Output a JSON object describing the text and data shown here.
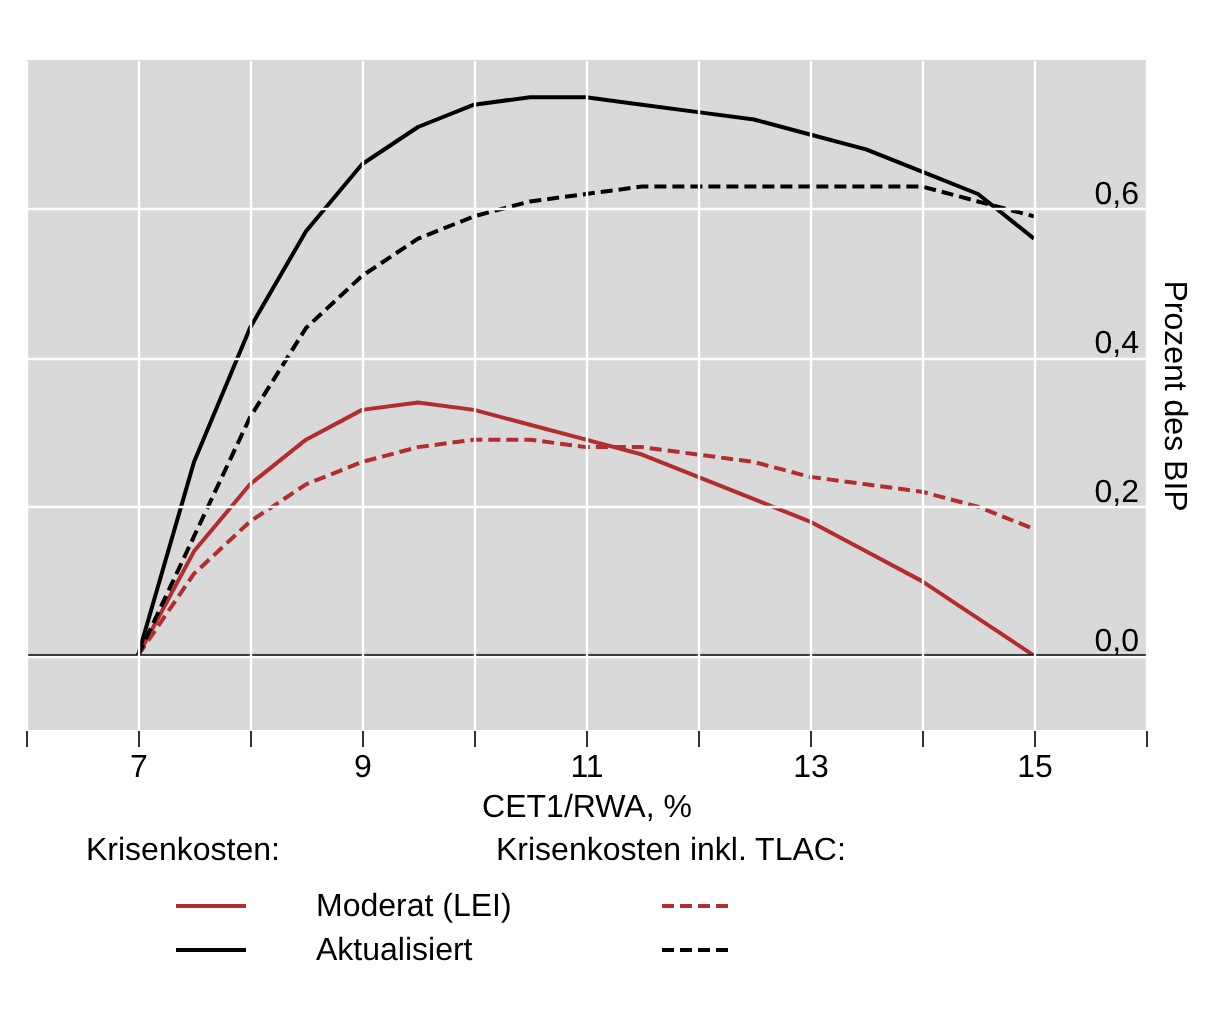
{
  "chart_data": {
    "type": "line",
    "xlabel": "CET1/RWA, %",
    "ylabel": "Prozent des BIP",
    "legend_title": "Krisenkosten:",
    "annotations": [
      "Krisenkosten inkl. TLAC:"
    ],
    "x": [
      7,
      7.5,
      8,
      8.5,
      9,
      9.5,
      10,
      10.5,
      11,
      11.5,
      12,
      12.5,
      13,
      13.5,
      14,
      14.5,
      15
    ],
    "series": [
      {
        "name": "Moderat (LEI)",
        "color": "#b22d2d",
        "line_style": "solid",
        "values": [
          0,
          0.14,
          0.23,
          0.29,
          0.33,
          0.34,
          0.33,
          0.31,
          0.29,
          0.27,
          0.24,
          0.21,
          0.18,
          0.14,
          0.1,
          0.05,
          0
        ]
      },
      {
        "name": "Aktualisiert",
        "color": "#000000",
        "line_style": "solid",
        "values": [
          0,
          0.26,
          0.44,
          0.57,
          0.66,
          0.71,
          0.74,
          0.75,
          0.75,
          0.74,
          0.73,
          0.72,
          0.7,
          0.68,
          0.65,
          0.62,
          0.56
        ]
      },
      {
        "color": "#b22d2d",
        "line_style": "dashed",
        "values": [
          0,
          0.11,
          0.18,
          0.23,
          0.26,
          0.28,
          0.29,
          0.29,
          0.28,
          0.28,
          0.27,
          0.26,
          0.24,
          0.23,
          0.22,
          0.2,
          0.17
        ]
      },
      {
        "color": "#000000",
        "line_style": "dashed",
        "values": [
          0,
          0.16,
          0.32,
          0.44,
          0.51,
          0.56,
          0.59,
          0.61,
          0.62,
          0.63,
          0.63,
          0.63,
          0.63,
          0.63,
          0.63,
          0.61,
          0.59
        ]
      }
    ],
    "xlim": [
      6,
      16
    ],
    "xticks": [
      {
        "value": 6,
        "label": null
      },
      7,
      {
        "value": 8,
        "label": null
      },
      9,
      {
        "value": 10,
        "label": null
      },
      11,
      {
        "value": 12,
        "label": null
      },
      13,
      {
        "value": 14,
        "label": null
      },
      15,
      {
        "value": 16,
        "label": null
      }
    ],
    "ylim": [
      -0.1,
      0.8
    ],
    "yticks": [
      {
        "value": 0,
        "label": "0,0"
      },
      {
        "value": 0.2,
        "label": "0,2"
      },
      {
        "value": 0.4,
        "label": "0,4"
      },
      {
        "value": 0.6,
        "label": "0,6"
      }
    ],
    "ref_lines": [
      {
        "axis": "y",
        "value": 0,
        "color": "#000000"
      }
    ],
    "grid": true,
    "legend": "bottom",
    "marker": "none"
  }
}
